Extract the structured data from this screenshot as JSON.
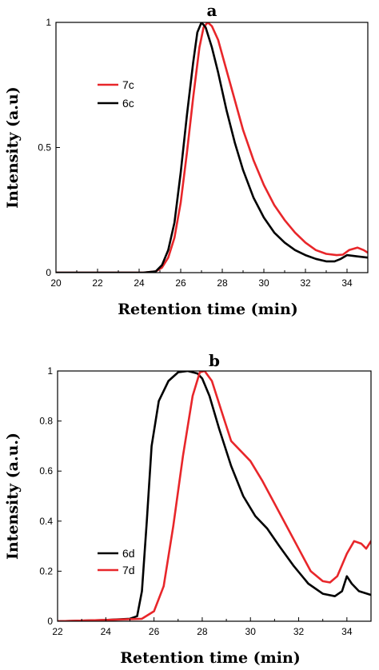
{
  "chart_data": [
    {
      "type": "line",
      "title": "a",
      "xlabel": "Retention time (min)",
      "ylabel": "Intensity (a.u)",
      "xlim": [
        20,
        35
      ],
      "ylim": [
        0,
        1.0
      ],
      "xticks": [
        20,
        22,
        24,
        26,
        28,
        30,
        32,
        34
      ],
      "xtick_labels": [
        "20",
        "22",
        "24",
        "26",
        "28",
        "30",
        "32",
        "34"
      ],
      "yticks": [
        0,
        0.5,
        1.0
      ],
      "ytick_labels": [
        "0",
        "0.5",
        "1"
      ],
      "legend_placement": "upper-left",
      "grid": false,
      "series": [
        {
          "name": "7c",
          "color": "#e8262a",
          "x": [
            20,
            24.2,
            24.8,
            25.1,
            25.4,
            25.7,
            26.0,
            26.3,
            26.6,
            26.9,
            27.1,
            27.3,
            27.5,
            27.8,
            28.1,
            28.5,
            29.0,
            29.5,
            30.0,
            30.5,
            31.0,
            31.5,
            32.0,
            32.5,
            33.0,
            33.5,
            33.8,
            34.1,
            34.5,
            34.8,
            35.0
          ],
          "values": [
            0.0,
            0.0,
            0.005,
            0.02,
            0.06,
            0.14,
            0.28,
            0.48,
            0.7,
            0.9,
            0.98,
            1.0,
            0.985,
            0.93,
            0.84,
            0.72,
            0.57,
            0.45,
            0.35,
            0.27,
            0.21,
            0.16,
            0.12,
            0.09,
            0.075,
            0.07,
            0.072,
            0.09,
            0.1,
            0.09,
            0.08
          ]
        },
        {
          "name": "6c",
          "color": "#000000",
          "x": [
            20,
            24.2,
            24.8,
            25.1,
            25.4,
            25.7,
            26.0,
            26.3,
            26.6,
            26.8,
            27.0,
            27.2,
            27.5,
            27.8,
            28.2,
            28.6,
            29.0,
            29.5,
            30.0,
            30.5,
            31.0,
            31.5,
            32.0,
            32.5,
            33.0,
            33.4,
            33.7,
            34.0,
            34.5,
            35.0
          ],
          "values": [
            0.0,
            0.0,
            0.005,
            0.03,
            0.09,
            0.2,
            0.4,
            0.63,
            0.84,
            0.96,
            1.0,
            0.98,
            0.9,
            0.8,
            0.65,
            0.52,
            0.41,
            0.3,
            0.22,
            0.16,
            0.12,
            0.09,
            0.07,
            0.055,
            0.045,
            0.045,
            0.055,
            0.07,
            0.065,
            0.06
          ]
        }
      ]
    },
    {
      "type": "line",
      "title": "b",
      "xlabel": "Retention time (min)",
      "ylabel": "Intensity (a.u.)",
      "xlim": [
        22,
        35
      ],
      "ylim": [
        0,
        1.0
      ],
      "xticks": [
        22,
        24,
        26,
        28,
        30,
        32,
        34
      ],
      "xtick_labels": [
        "22",
        "24",
        "26",
        "28",
        "30",
        "32",
        "34"
      ],
      "yticks": [
        0,
        0.2,
        0.4,
        0.6,
        0.8,
        1.0
      ],
      "ytick_labels": [
        "0",
        "0.2",
        "0.4",
        "0.6",
        "0.8",
        "1"
      ],
      "legend_placement": "upper-left",
      "grid": false,
      "series": [
        {
          "name": "6d",
          "color": "#000000",
          "x": [
            22,
            24.0,
            25.0,
            25.3,
            25.5,
            25.7,
            25.9,
            26.2,
            26.6,
            27.0,
            27.4,
            27.8,
            28.0,
            28.3,
            28.7,
            29.2,
            29.7,
            30.2,
            30.7,
            31.2,
            31.8,
            32.4,
            33.0,
            33.5,
            33.8,
            34.0,
            34.2,
            34.5,
            35.0
          ],
          "values": [
            0.0,
            0.005,
            0.01,
            0.02,
            0.12,
            0.4,
            0.7,
            0.88,
            0.96,
            0.995,
            1.0,
            0.99,
            0.97,
            0.9,
            0.77,
            0.62,
            0.5,
            0.42,
            0.37,
            0.3,
            0.22,
            0.15,
            0.11,
            0.1,
            0.12,
            0.18,
            0.15,
            0.12,
            0.105
          ]
        },
        {
          "name": "7d",
          "color": "#e8262a",
          "x": [
            22,
            24.0,
            25.5,
            26.0,
            26.4,
            26.8,
            27.2,
            27.6,
            27.9,
            28.1,
            28.4,
            28.8,
            29.2,
            29.6,
            30.0,
            30.5,
            31.0,
            31.5,
            32.0,
            32.5,
            33.0,
            33.3,
            33.6,
            34.0,
            34.3,
            34.6,
            34.8,
            35.0
          ],
          "values": [
            0.0,
            0.005,
            0.01,
            0.04,
            0.14,
            0.38,
            0.66,
            0.9,
            0.995,
            1.0,
            0.96,
            0.84,
            0.72,
            0.68,
            0.64,
            0.56,
            0.47,
            0.38,
            0.29,
            0.2,
            0.16,
            0.155,
            0.18,
            0.27,
            0.32,
            0.31,
            0.29,
            0.32
          ]
        }
      ]
    }
  ]
}
